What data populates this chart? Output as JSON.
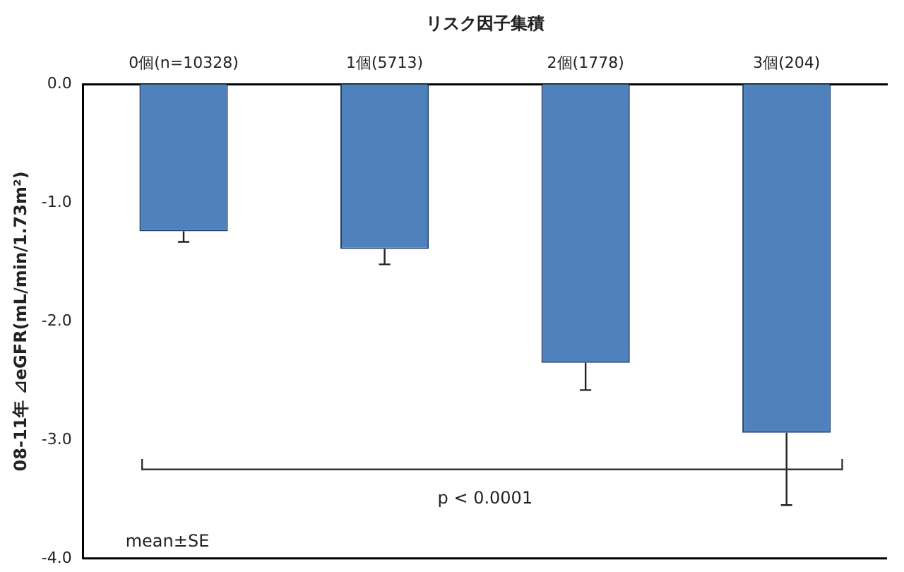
{
  "chart_data": {
    "type": "bar",
    "xlabel": "リスク因子集積",
    "ylabel": "08-11年 ⊿eGFR(mL/min/1.73m²)",
    "categories": [
      "0個(n=10328)",
      "1個(5713)",
      "2個(1778)",
      "3個(204)"
    ],
    "values": [
      -1.24,
      -1.39,
      -2.35,
      -2.94
    ],
    "errors": [
      0.09,
      0.13,
      0.23,
      0.61
    ],
    "color": "#4f81bd",
    "ylim": [
      -4,
      0
    ],
    "yticks": [
      {
        "value": 0,
        "label": "0.0"
      },
      {
        "value": -1,
        "label": "-1.0"
      },
      {
        "value": -2,
        "label": "-2.0"
      },
      {
        "value": -3,
        "label": "-3.0"
      },
      {
        "value": -4,
        "label": "-4.0"
      }
    ],
    "grid": false,
    "legend": false,
    "annotations": [
      "p < 0.0001",
      "mean±SE"
    ]
  }
}
